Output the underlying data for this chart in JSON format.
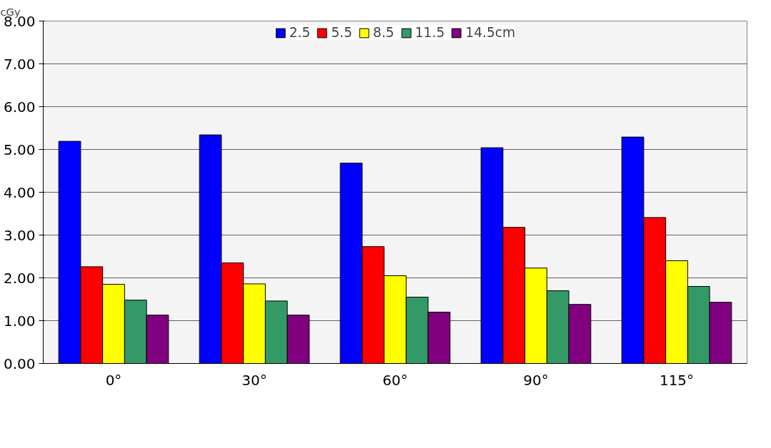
{
  "chart_data": {
    "type": "bar",
    "annotations": [
      "cGy"
    ],
    "categories": [
      "0°",
      "30°",
      "60°",
      "90°",
      "115°"
    ],
    "series": [
      {
        "name": "2.5",
        "color": "#0000ff",
        "values": [
          5.19,
          5.34,
          4.68,
          5.04,
          5.29
        ]
      },
      {
        "name": "5.5",
        "color": "#ff0000",
        "values": [
          2.26,
          2.35,
          2.73,
          3.18,
          3.41
        ]
      },
      {
        "name": "8.5",
        "color": "#ffff00",
        "values": [
          1.85,
          1.86,
          2.05,
          2.23,
          2.4
        ]
      },
      {
        "name": "11.5",
        "color": "#339966",
        "values": [
          1.48,
          1.46,
          1.55,
          1.7,
          1.8
        ]
      },
      {
        "name": "14.5cm",
        "color": "#800080",
        "values": [
          1.13,
          1.13,
          1.2,
          1.38,
          1.43
        ]
      }
    ],
    "ylim": [
      0,
      8
    ],
    "yticks": [
      {
        "value": 0,
        "label": "0.00"
      },
      {
        "value": 1,
        "label": "1.00"
      },
      {
        "value": 2,
        "label": "2.00"
      },
      {
        "value": 3,
        "label": "3.00"
      },
      {
        "value": 4,
        "label": "4.00"
      },
      {
        "value": 5,
        "label": "5.00"
      },
      {
        "value": 6,
        "label": "6.00"
      },
      {
        "value": 7,
        "label": "7.00"
      },
      {
        "value": 8,
        "label": "8.00"
      }
    ],
    "grid": "y",
    "legend": "top"
  }
}
